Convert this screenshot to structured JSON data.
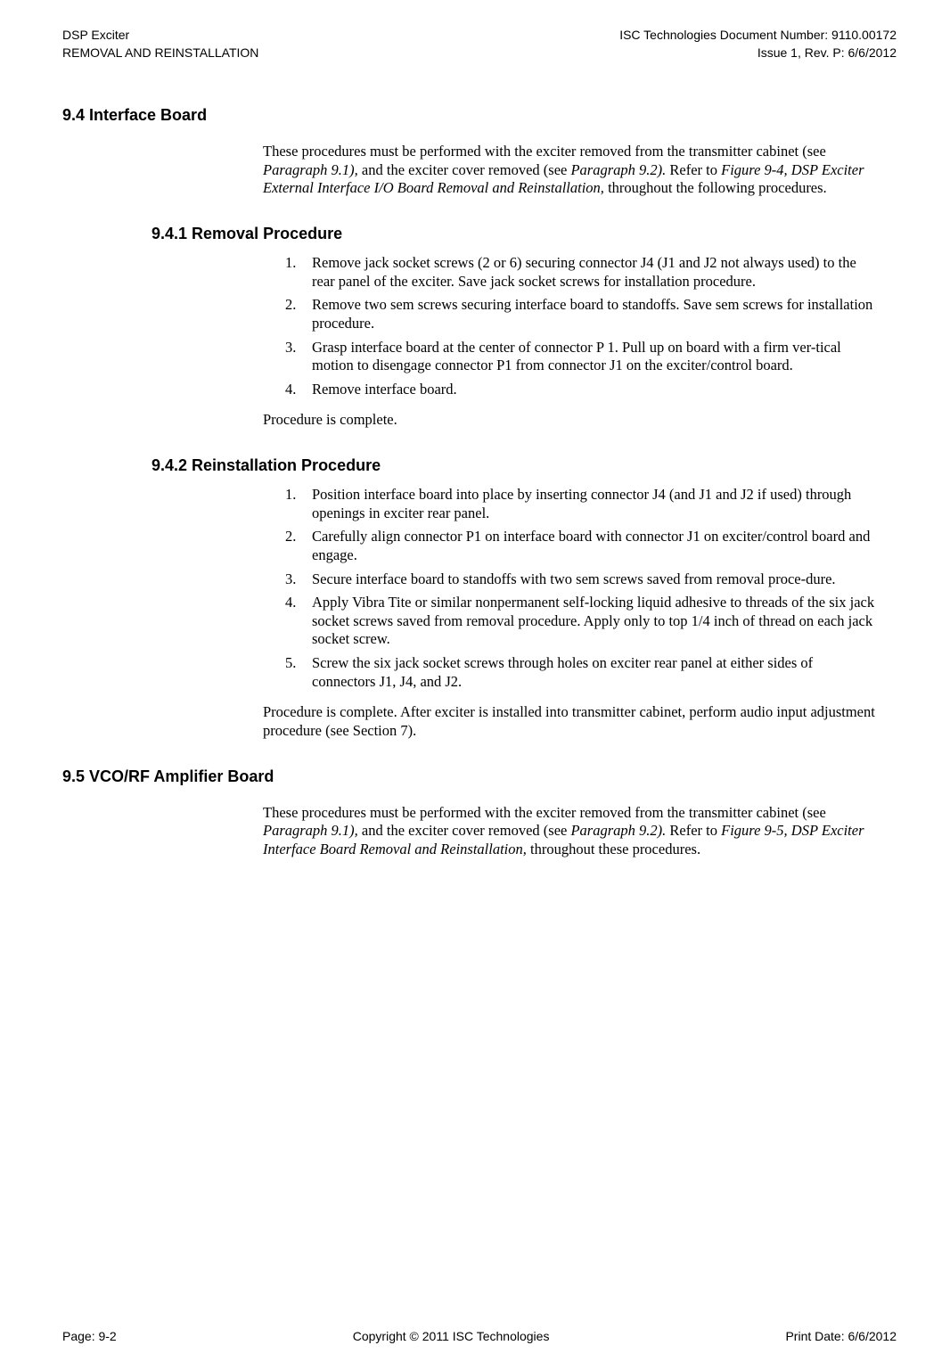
{
  "header": {
    "left_line1": "DSP Exciter",
    "left_line2": "REMOVAL AND REINSTALLATION",
    "right_line1": "ISC Technologies Document Number: 9110.00172",
    "right_line2": "Issue 1, Rev. P: 6/6/2012"
  },
  "section_94": {
    "heading": "9.4 Interface Board",
    "intro_part1": "These procedures must be performed with the exciter removed from the transmitter cabinet (see ",
    "intro_ref1": "Paragraph 9.1),",
    "intro_part2": " and the exciter cover removed (see ",
    "intro_ref2": "Paragraph 9.2).",
    "intro_part3": " Refer to ",
    "intro_ref3": "Figure 9-4, DSP Exciter External Interface I/O Board Removal and Reinstallation,",
    "intro_part4": " throughout the following procedures."
  },
  "section_941": {
    "heading": "9.4.1 Removal Procedure",
    "items": [
      {
        "num": "1.",
        "text": "Remove jack socket screws (2 or 6) securing connector J4 (J1 and J2 not always used) to the rear panel of the exciter. Save jack socket screws for installation procedure."
      },
      {
        "num": "2.",
        "text": "Remove two sem screws securing interface board to standoffs. Save sem screws for installation procedure."
      },
      {
        "num": "3.",
        "text": "Grasp interface board at the center of connector P 1. Pull up on board with a firm ver-tical motion to disengage connector P1 from connector J1 on the exciter/control board."
      },
      {
        "num": "4.",
        "text": "Remove interface board."
      }
    ],
    "closing": "Procedure is complete."
  },
  "section_942": {
    "heading": "9.4.2 Reinstallation Procedure",
    "items": [
      {
        "num": "1.",
        "text": "Position interface board into place by inserting connector J4 (and J1 and J2 if used) through openings in exciter rear panel."
      },
      {
        "num": "2.",
        "text": "Carefully align connector P1 on interface board with connector J1 on exciter/control board and engage."
      },
      {
        "num": "3.",
        "text": "Secure interface board to standoffs with two sem screws saved from removal proce-dure."
      },
      {
        "num": "4.",
        "text": "Apply Vibra Tite or similar nonpermanent self-locking liquid adhesive to threads of the six jack socket screws saved from removal procedure. Apply only to top 1/4 inch of thread on each jack socket screw."
      },
      {
        "num": "5.",
        "text": "Screw the six jack socket screws through holes on exciter rear panel at either sides of connectors J1, J4, and J2."
      }
    ],
    "closing": "Procedure is complete. After exciter is installed into transmitter cabinet, perform audio input adjustment procedure (see Section 7)."
  },
  "section_95": {
    "heading": "9.5 VCO/RF Amplifier Board",
    "intro_part1": "These procedures must be performed with the exciter removed from the transmitter cabinet (see ",
    "intro_ref1": "Paragraph 9.1),",
    "intro_part2": " and the exciter cover removed (see ",
    "intro_ref2": "Paragraph 9.2).",
    "intro_part3": " Refer to ",
    "intro_ref3": "Figure 9-5, DSP Exciter Interface Board Removal and Reinstallation,",
    "intro_part4": " throughout these procedures."
  },
  "footer": {
    "left": "Page: 9-2",
    "center": "Copyright © 2011 ISC Technologies",
    "right": "Print Date: 6/6/2012"
  }
}
